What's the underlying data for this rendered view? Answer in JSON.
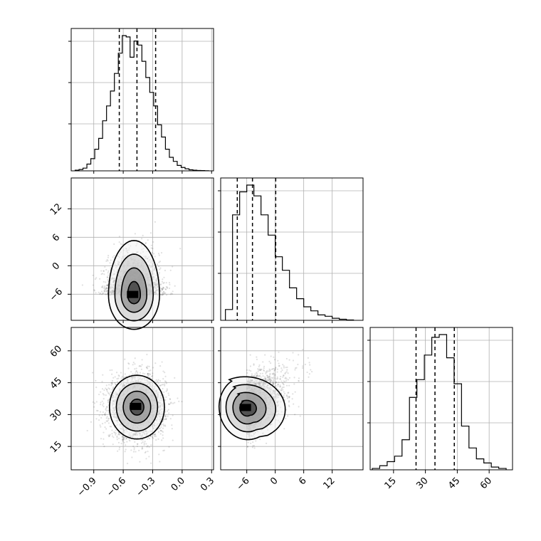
{
  "chart_data": {
    "type": "corner",
    "title": "",
    "parameters": [
      {
        "range": [
          -1.13,
          0.32
        ],
        "ticks": [
          -0.9,
          -0.6,
          -0.3,
          0.0,
          0.3
        ],
        "tick_labels": [
          "−0.9",
          "−0.6",
          "−0.3",
          "0.0",
          "0.3"
        ]
      },
      {
        "range": [
          -11.5,
          18.5
        ],
        "ticks": [
          -6,
          0,
          6,
          12
        ],
        "tick_labels": [
          "−6",
          "0",
          "6",
          "12"
        ]
      },
      {
        "range": [
          4,
          71
        ],
        "ticks": [
          15,
          30,
          45,
          60
        ],
        "tick_labels": [
          "15",
          "30",
          "45",
          "60"
        ]
      }
    ],
    "quantiles": [
      [
        -0.64,
        -0.46,
        -0.27
      ],
      [
        -8.0,
        -4.8,
        0.1
      ],
      [
        25.6,
        34.5,
        43.6
      ]
    ],
    "histograms": [
      {
        "bins": [
          -1.09,
          -1.05,
          -1.01,
          -0.97,
          -0.93,
          -0.89,
          -0.85,
          -0.81,
          -0.77,
          -0.73,
          -0.69,
          -0.65,
          -0.61,
          -0.57,
          -0.53,
          -0.49,
          -0.45,
          -0.41,
          -0.37,
          -0.33,
          -0.29,
          -0.25,
          -0.21,
          -0.17,
          -0.13,
          -0.09,
          -0.05,
          -0.01,
          0.03,
          0.07,
          0.11,
          0.15,
          0.19,
          0.23,
          0.27
        ],
        "counts": [
          0.005,
          0.01,
          0.02,
          0.05,
          0.09,
          0.16,
          0.24,
          0.37,
          0.48,
          0.59,
          0.72,
          0.87,
          1.0,
          0.99,
          0.84,
          0.96,
          0.93,
          0.81,
          0.69,
          0.58,
          0.48,
          0.34,
          0.25,
          0.16,
          0.1,
          0.07,
          0.04,
          0.025,
          0.015,
          0.008,
          0.005,
          0.003,
          0.002,
          0.001
        ]
      },
      {
        "bins": [
          -10.5,
          -9,
          -7.5,
          -6,
          -4.5,
          -3,
          -1.5,
          0,
          1.5,
          3,
          4.5,
          6,
          7.5,
          9,
          10.5,
          12,
          13.5,
          15,
          16.5
        ],
        "counts": [
          0.08,
          0.78,
          0.95,
          1.0,
          0.92,
          0.78,
          0.63,
          0.47,
          0.37,
          0.24,
          0.16,
          0.1,
          0.07,
          0.04,
          0.03,
          0.015,
          0.008,
          0.003
        ]
      },
      {
        "bins": [
          5,
          8.5,
          12,
          15.5,
          19,
          22.5,
          26,
          29.5,
          33,
          36.5,
          40,
          43.5,
          47,
          50.5,
          54,
          57.5,
          61,
          64.5,
          68
        ],
        "counts": [
          0.01,
          0.03,
          0.06,
          0.1,
          0.22,
          0.53,
          0.66,
          0.84,
          0.97,
          0.99,
          0.82,
          0.63,
          0.32,
          0.16,
          0.08,
          0.05,
          0.02,
          0.01
        ]
      }
    ],
    "density_2d": [
      {
        "x_param": 0,
        "y_param": 1,
        "center": [
          -0.49,
          -6.2
        ],
        "sigma": [
          0.13,
          3.6
        ],
        "skew": "right-tail in y"
      },
      {
        "x_param": 0,
        "y_param": 2,
        "center": [
          -0.46,
          33.5
        ],
        "sigma": [
          0.14,
          7.5
        ],
        "skew": "none"
      },
      {
        "x_param": 1,
        "y_param": 2,
        "center": [
          -6.0,
          33.0
        ],
        "sigma": [
          3.2,
          7.5
        ],
        "skew": "positive correlation"
      }
    ],
    "grid": true,
    "legend": "none"
  }
}
